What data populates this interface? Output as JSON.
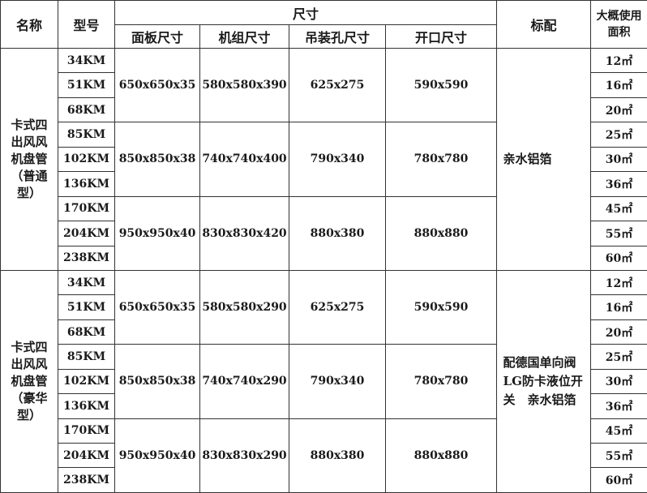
{
  "header": {
    "name": "名称",
    "model": "型号",
    "size_group": "尺寸",
    "panel": "面板尺寸",
    "unit": "机组尺寸",
    "hanging": "吊装孔尺寸",
    "opening": "开口尺寸",
    "standard": "标配",
    "area": "大概使用面积"
  },
  "sections": [
    {
      "name": "卡式四出风风机盘管（普通型）",
      "standard": "亲水铝箔",
      "groups": [
        {
          "panel": "650x650x35",
          "unit": "580x580x390",
          "hanging": "625x275",
          "opening": "590x590",
          "rows": [
            {
              "model": "34KM",
              "area": "12㎡"
            },
            {
              "model": "51KM",
              "area": "16㎡"
            },
            {
              "model": "68KM",
              "area": "20㎡"
            }
          ]
        },
        {
          "panel": "850x850x38",
          "unit": "740x740x400",
          "hanging": "790x340",
          "opening": "780x780",
          "rows": [
            {
              "model": "85KM",
              "area": "25㎡"
            },
            {
              "model": "102KM",
              "area": "30㎡"
            },
            {
              "model": "136KM",
              "area": "36㎡"
            }
          ]
        },
        {
          "panel": "950x950x40",
          "unit": "830x830x420",
          "hanging": "880x380",
          "opening": "880x880",
          "rows": [
            {
              "model": "170KM",
              "area": "45㎡"
            },
            {
              "model": "204KM",
              "area": "55㎡"
            },
            {
              "model": "238KM",
              "area": "60㎡"
            }
          ]
        }
      ]
    },
    {
      "name": "卡式四出风风机盘管（豪华型）",
      "standard": "配德国单向阀LG防卡液位开关　亲水铝箔",
      "groups": [
        {
          "panel": "650x650x35",
          "unit": "580x580x290",
          "hanging": "625x275",
          "opening": "590x590",
          "rows": [
            {
              "model": "34KM",
              "area": "12㎡"
            },
            {
              "model": "51KM",
              "area": "16㎡"
            },
            {
              "model": "68KM",
              "area": "20㎡"
            }
          ]
        },
        {
          "panel": "850x850x38",
          "unit": "740x740x290",
          "hanging": "790x340",
          "opening": "780x780",
          "rows": [
            {
              "model": "85KM",
              "area": "25㎡"
            },
            {
              "model": "102KM",
              "area": "30㎡"
            },
            {
              "model": "136KM",
              "area": "36㎡"
            }
          ]
        },
        {
          "panel": "950x950x40",
          "unit": "830x830x290",
          "hanging": "880x380",
          "opening": "880x880",
          "rows": [
            {
              "model": "170KM",
              "area": "45㎡"
            },
            {
              "model": "204KM",
              "area": "55㎡"
            },
            {
              "model": "238KM",
              "area": "60㎡"
            }
          ]
        }
      ]
    }
  ]
}
